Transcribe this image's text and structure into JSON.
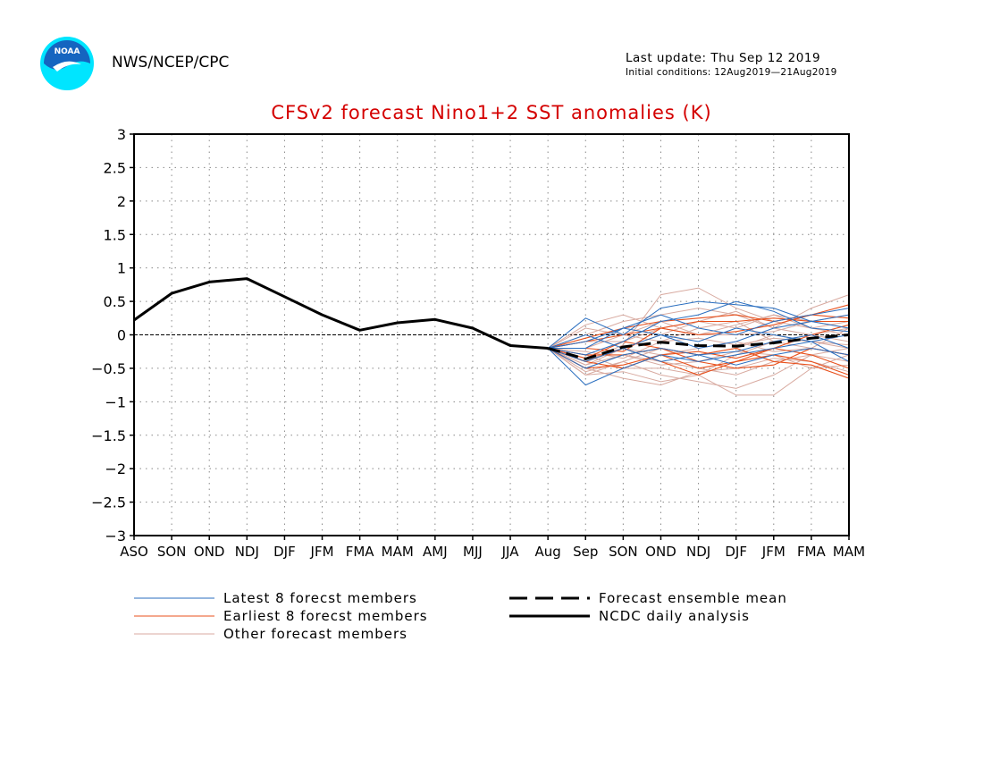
{
  "header": {
    "org": "NWS/NCEP/CPC",
    "last_update": "Last update: Thu Sep 12 2019",
    "initial_conditions": "Initial conditions: 12Aug2019—21Aug2019",
    "logo_text": "NOAA"
  },
  "colors": {
    "title": "#d40000",
    "latest": "#2a6ebf",
    "earliest": "#e8501c",
    "other": "#d8aaa0",
    "analysis": "#000000",
    "logo_top": "#1565c0",
    "logo_bottom": "#00e5ff"
  },
  "chart_data": {
    "type": "line",
    "title": "CFSv2 forecast Nino1+2 SST anomalies (K)",
    "categories": [
      "ASO",
      "SON",
      "OND",
      "NDJ",
      "DJF",
      "JFM",
      "FMA",
      "MAM",
      "AMJ",
      "MJJ",
      "JJA",
      "Aug",
      "Sep",
      "SON",
      "OND",
      "NDJ",
      "DJF",
      "JFM",
      "FMA",
      "MAM"
    ],
    "yticks": [
      "3",
      "2.5",
      "2",
      "1.5",
      "1",
      "0.5",
      "0",
      "−0.5",
      "−1",
      "−1.5",
      "−2",
      "−2.5",
      "−3"
    ],
    "ylim": [
      -3,
      3
    ],
    "grid": "dotted",
    "zero_line": true,
    "legend_position": "bottom",
    "legend": {
      "latest": "Latest 8 forecst members",
      "earliest": "Earliest 8 forecst members",
      "other": "Other forecast members",
      "mean": "Forecast ensemble mean",
      "analysis": "NCDC daily analysis"
    },
    "ncdc_analysis": [
      0.22,
      0.62,
      0.79,
      0.84,
      0.57,
      0.3,
      0.07,
      0.18,
      0.23,
      0.1,
      -0.16,
      -0.2
    ],
    "ensemble_mean_x_start": 11,
    "ensemble_mean": [
      -0.2,
      -0.36,
      -0.18,
      -0.11,
      -0.16,
      -0.17,
      -0.12,
      -0.05,
      0.0
    ],
    "latest_members": [
      [
        -0.2,
        0.25,
        0.0,
        0.4,
        0.5,
        0.45,
        0.4,
        0.2,
        0.1
      ],
      [
        -0.2,
        -0.3,
        -0.1,
        0.2,
        0.3,
        0.5,
        0.35,
        0.1,
        0.05
      ],
      [
        -0.2,
        -0.75,
        -0.5,
        -0.3,
        -0.4,
        -0.3,
        -0.2,
        -0.1,
        0.0
      ],
      [
        -0.2,
        -0.1,
        0.1,
        0.3,
        0.1,
        0.0,
        0.2,
        0.3,
        0.4
      ],
      [
        -0.2,
        -0.5,
        -0.3,
        -0.2,
        -0.3,
        -0.25,
        -0.1,
        0.0,
        -0.2
      ],
      [
        -0.2,
        0.0,
        -0.2,
        -0.4,
        -0.3,
        -0.45,
        -0.3,
        -0.2,
        -0.3
      ],
      [
        -0.2,
        -0.4,
        -0.2,
        0.0,
        -0.1,
        0.1,
        0.0,
        -0.1,
        -0.4
      ],
      [
        -0.2,
        -0.2,
        0.1,
        0.0,
        -0.2,
        -0.1,
        0.1,
        0.2,
        0.3
      ]
    ],
    "earliest_members": [
      [
        -0.2,
        -0.4,
        -0.5,
        -0.3,
        -0.5,
        -0.4,
        -0.3,
        -0.4,
        -0.6
      ],
      [
        -0.2,
        -0.05,
        0.1,
        0.2,
        0.25,
        0.3,
        0.2,
        0.3,
        0.45
      ],
      [
        -0.2,
        -0.3,
        -0.3,
        -0.2,
        -0.4,
        -0.5,
        -0.45,
        -0.2,
        -0.3
      ],
      [
        -0.2,
        -0.1,
        0.0,
        0.1,
        0.2,
        0.2,
        0.25,
        0.2,
        0.2
      ],
      [
        -0.2,
        -0.4,
        -0.2,
        -0.4,
        -0.6,
        -0.4,
        -0.2,
        0.0,
        0.15
      ],
      [
        -0.2,
        -0.5,
        -0.45,
        -0.3,
        -0.25,
        -0.35,
        -0.2,
        -0.3,
        -0.5
      ],
      [
        -0.2,
        -0.2,
        -0.25,
        0.1,
        0.0,
        0.05,
        0.15,
        0.3,
        0.25
      ],
      [
        -0.2,
        -0.35,
        -0.1,
        -0.2,
        -0.3,
        -0.2,
        -0.4,
        -0.45,
        -0.65
      ]
    ],
    "other_members": [
      [
        -0.2,
        -0.4,
        -0.15,
        0.6,
        0.7,
        0.4,
        0.2,
        0.1,
        0.0
      ],
      [
        -0.2,
        -0.6,
        -0.55,
        -0.7,
        -0.6,
        -0.9,
        -0.9,
        -0.5,
        -0.3
      ],
      [
        -0.2,
        0.0,
        0.2,
        0.3,
        0.4,
        0.3,
        0.1,
        0.4,
        0.6
      ],
      [
        -0.2,
        -0.45,
        -0.3,
        -0.4,
        -0.5,
        -0.6,
        -0.4,
        -0.3,
        -0.2
      ],
      [
        -0.2,
        -0.55,
        -0.4,
        -0.2,
        -0.3,
        -0.2,
        0.0,
        -0.1,
        -0.15
      ],
      [
        -0.2,
        0.15,
        0.3,
        0.1,
        0.0,
        0.15,
        0.3,
        0.1,
        0.2
      ],
      [
        -0.2,
        -0.3,
        -0.5,
        -0.5,
        -0.6,
        -0.3,
        -0.1,
        -0.2,
        0.1
      ],
      [
        -0.2,
        -0.2,
        0.0,
        -0.1,
        0.1,
        0.2,
        -0.1,
        0.0,
        -0.1
      ],
      [
        -0.2,
        -0.5,
        -0.65,
        -0.75,
        -0.55,
        -0.5,
        -0.35,
        -0.4,
        -0.55
      ],
      [
        -0.2,
        -0.1,
        -0.1,
        0.1,
        0.2,
        0.1,
        0.3,
        0.2,
        0.3
      ],
      [
        -0.2,
        -0.35,
        -0.2,
        -0.3,
        -0.2,
        -0.1,
        -0.25,
        -0.2,
        -0.3
      ],
      [
        -0.2,
        -0.6,
        -0.4,
        -0.6,
        -0.7,
        -0.8,
        -0.6,
        -0.3,
        -0.4
      ],
      [
        -0.2,
        0.1,
        0.0,
        0.2,
        0.0,
        0.0,
        0.05,
        0.2,
        0.1
      ],
      [
        -0.2,
        -0.25,
        -0.35,
        -0.1,
        -0.05,
        -0.15,
        -0.05,
        -0.1,
        -0.2
      ],
      [
        -0.2,
        -0.45,
        -0.2,
        0.0,
        0.2,
        0.35,
        0.1,
        0.0,
        0.1
      ],
      [
        -0.2,
        -0.5,
        -0.3,
        -0.45,
        -0.4,
        -0.25,
        -0.3,
        -0.5,
        -0.45
      ]
    ]
  }
}
